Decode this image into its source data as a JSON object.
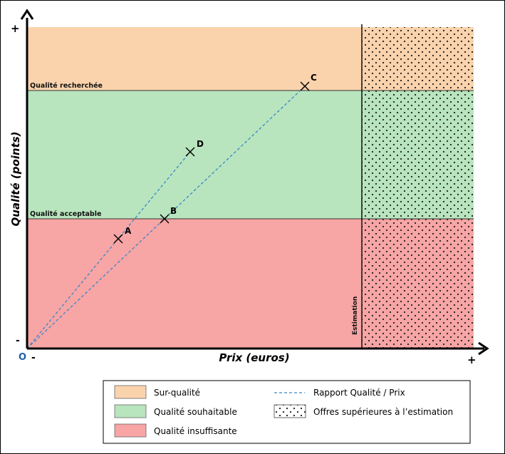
{
  "axes": {
    "x_title": "Prix (euros)",
    "y_title": "Qualité (points)",
    "x_min_label": "-",
    "x_max_label": "+",
    "y_min_label": "-",
    "y_max_label": "+",
    "origin_label": "O"
  },
  "thresholds": {
    "recherchee_label": "Qualité recherchée",
    "acceptable_label": "Qualité acceptable",
    "estimation_label": "Estimation"
  },
  "colors": {
    "sur_qualite": "#fad3ad",
    "souhaitable": "#b8e5be",
    "insuffisante": "#f7a5a5",
    "ratio_line": "#3a87c8",
    "origin": "#1c5fa8"
  },
  "points": [
    {
      "label": "A"
    },
    {
      "label": "B"
    },
    {
      "label": "C"
    },
    {
      "label": "D"
    }
  ],
  "legend": {
    "items": [
      {
        "label": "Sur-qualité"
      },
      {
        "label": "Rapport Qualité / Prix"
      },
      {
        "label": "Qualité souhaitable"
      },
      {
        "label": "Offres supérieures à l’estimation"
      },
      {
        "label": "Qualité insuffisante"
      }
    ]
  }
}
